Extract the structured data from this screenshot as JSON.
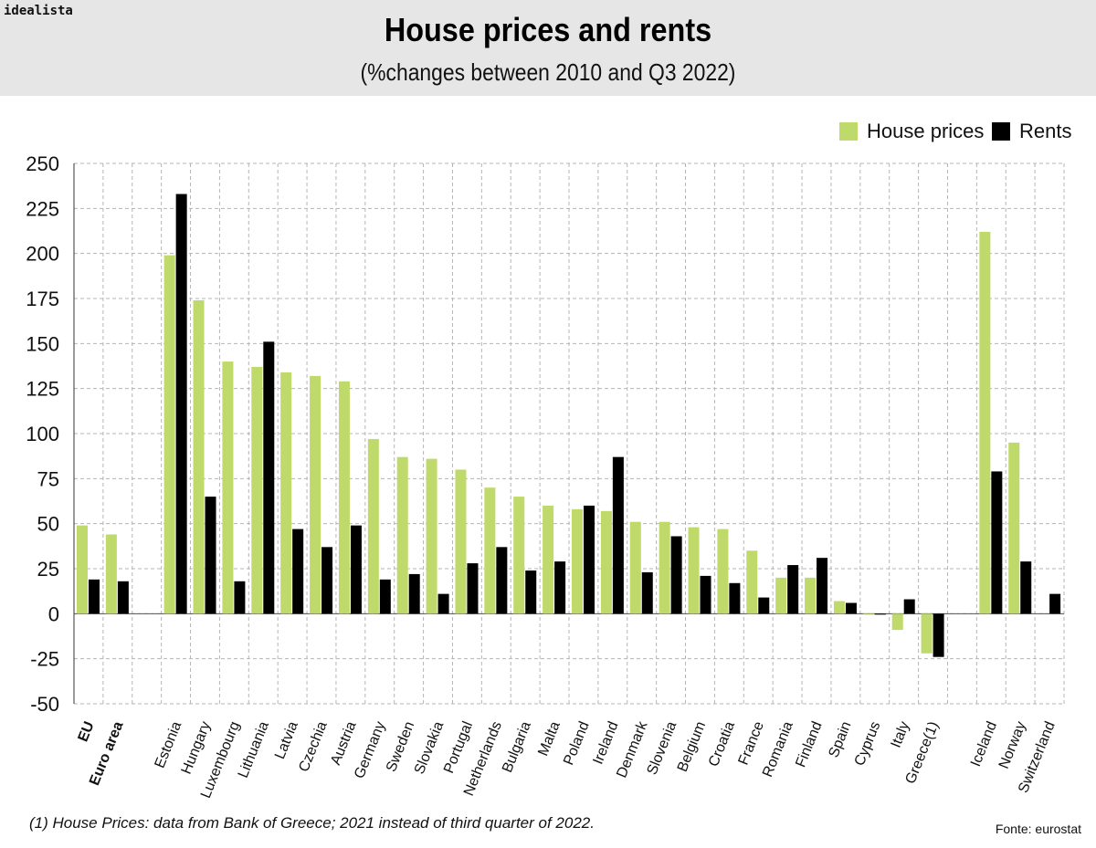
{
  "brand": "idealista",
  "chart_data": {
    "type": "bar",
    "title": "House prices and rents",
    "subtitle": "(%changes between 2010 and Q3 2022)",
    "ylim": [
      -50,
      250
    ],
    "yticks": [
      250,
      225,
      200,
      175,
      150,
      125,
      100,
      75,
      50,
      25,
      0,
      -25,
      -50
    ],
    "grid": true,
    "legend_position": "top-right",
    "categories": [
      "EU",
      "Euro area",
      "",
      "Estonia",
      "Hungary",
      "Luxembourg",
      "Lithuania",
      "Latvia",
      "Czechia",
      "Austria",
      "Germany",
      "Sweden",
      "Slovakia",
      "Portugal",
      "Netherlands",
      "Bulgaria",
      "Malta",
      "Poland",
      "Ireland",
      "Denmark",
      "Slovenia",
      "Belgium",
      "Croatia",
      "France",
      "Romania",
      "Finland",
      "Spain",
      "Cyprus",
      "Italy",
      "Greece(1)",
      "",
      "Iceland",
      "Norway",
      "Switzerland"
    ],
    "bold_categories": [
      "EU",
      "Euro area"
    ],
    "series": [
      {
        "name": "House prices",
        "color": "#bfd96a",
        "values": [
          49,
          44,
          null,
          199,
          174,
          140,
          137,
          134,
          132,
          129,
          97,
          87,
          86,
          80,
          70,
          65,
          60,
          58,
          57,
          51,
          51,
          48,
          47,
          35,
          20,
          20,
          7,
          0,
          -9,
          -22,
          null,
          212,
          95,
          null
        ]
      },
      {
        "name": "Rents",
        "color": "#000000",
        "values": [
          19,
          18,
          null,
          233,
          65,
          18,
          151,
          47,
          37,
          49,
          19,
          22,
          11,
          28,
          37,
          24,
          29,
          60,
          87,
          23,
          43,
          21,
          17,
          9,
          27,
          31,
          6,
          0,
          8,
          -24,
          null,
          79,
          29,
          11
        ]
      }
    ]
  },
  "footnote": "(1) House Prices: data from Bank of Greece; 2021 instead of third quarter of 2022.",
  "source": "Fonte: eurostat"
}
